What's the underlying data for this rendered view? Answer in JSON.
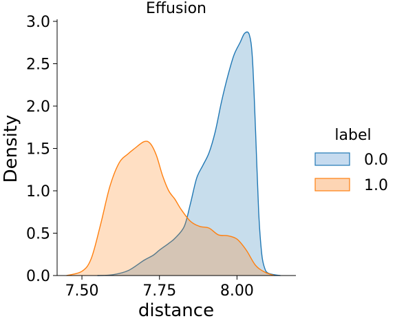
{
  "chart_data": {
    "type": "area",
    "title": "Effusion",
    "xlabel": "distance",
    "ylabel": "Density",
    "xlim": [
      7.42,
      8.19
    ],
    "ylim": [
      0,
      3.0
    ],
    "x_ticks": [
      7.5,
      7.75,
      8.0
    ],
    "x_tick_labels": [
      "7.50",
      "7.75",
      "8.00"
    ],
    "y_ticks": [
      0.0,
      0.5,
      1.0,
      1.5,
      2.0,
      2.5,
      3.0
    ],
    "y_tick_labels": [
      "0.0",
      "0.5",
      "1.0",
      "1.5",
      "2.0",
      "2.5",
      "3.0"
    ],
    "grid": false,
    "legend": {
      "title": "label",
      "position": "right"
    },
    "series": [
      {
        "name": "0.0",
        "color": "#1f77b4",
        "fill": "#c6dbef",
        "x": [
          7.55,
          7.6,
          7.65,
          7.7,
          7.73,
          7.75,
          7.78,
          7.8,
          7.83,
          7.85,
          7.87,
          7.89,
          7.91,
          7.93,
          7.95,
          7.97,
          7.99,
          8.01,
          8.025,
          8.04,
          8.05,
          8.06,
          8.07,
          8.08,
          8.09,
          8.1,
          8.12,
          8.14
        ],
        "y": [
          0.0,
          0.01,
          0.06,
          0.18,
          0.24,
          0.3,
          0.38,
          0.44,
          0.58,
          0.85,
          1.15,
          1.3,
          1.45,
          1.7,
          2.05,
          2.35,
          2.6,
          2.75,
          2.86,
          2.84,
          2.55,
          1.7,
          0.75,
          0.25,
          0.08,
          0.03,
          0.01,
          0.0
        ]
      },
      {
        "name": "1.0",
        "color": "#ff7f0e",
        "fill": "#fdd5b4",
        "x": [
          7.45,
          7.5,
          7.53,
          7.56,
          7.59,
          7.62,
          7.65,
          7.67,
          7.7,
          7.72,
          7.74,
          7.76,
          7.78,
          7.8,
          7.82,
          7.85,
          7.88,
          7.91,
          7.94,
          7.97,
          8.0,
          8.03,
          8.06,
          8.09,
          8.12
        ],
        "y": [
          0.0,
          0.05,
          0.2,
          0.6,
          1.05,
          1.33,
          1.44,
          1.5,
          1.58,
          1.56,
          1.42,
          1.18,
          1.0,
          0.9,
          0.78,
          0.64,
          0.58,
          0.56,
          0.48,
          0.47,
          0.43,
          0.3,
          0.12,
          0.04,
          0.0
        ]
      }
    ]
  }
}
